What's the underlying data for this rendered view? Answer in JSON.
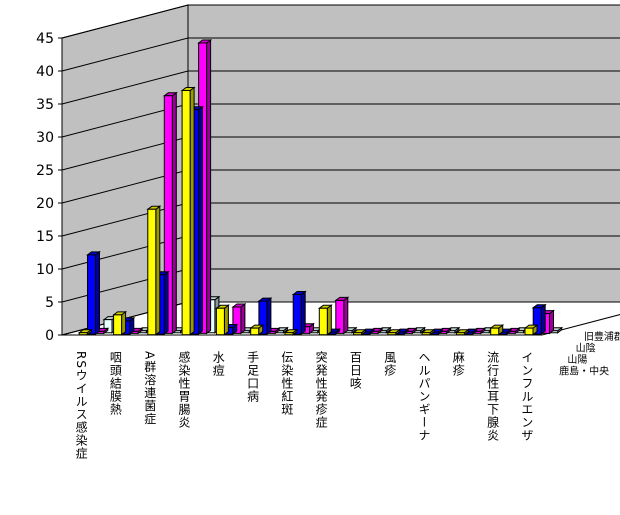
{
  "chart_data": {
    "type": "bar",
    "style": "3d-clustered-column",
    "ylim": [
      0,
      45
    ],
    "yticks": [
      0,
      5,
      10,
      15,
      20,
      25,
      30,
      35,
      40,
      45
    ],
    "grid": true,
    "legend_placement": "right, along depth axis",
    "categories": [
      "RSウイルス感染症",
      "咽頭結膜熱",
      "A群溶連菌症",
      "感染性胃腸炎",
      "水痘",
      "手足口病",
      "伝染性紅斑",
      "突発性発疹症",
      "百日咳",
      "風疹",
      "ヘルパンギーナ",
      "麻疹",
      "流行性耳下腺炎",
      "インフルエンザ"
    ],
    "series": [
      {
        "name": "鹿島・中央",
        "color": "#FFFF00",
        "values": [
          0,
          3,
          19,
          37,
          4,
          1,
          0,
          4,
          0,
          0,
          0,
          0,
          1,
          1
        ]
      },
      {
        "name": "山陽",
        "color": "#0000FF",
        "values": [
          12,
          2,
          9,
          34,
          1,
          5,
          6,
          0,
          0,
          0,
          0,
          0,
          0,
          4
        ]
      },
      {
        "name": "山陰",
        "color": "#FF00FF",
        "values": [
          0,
          0,
          36,
          44,
          4,
          0,
          1,
          5,
          0,
          0,
          0,
          0,
          0,
          3
        ]
      },
      {
        "name": "旧豊浦郡",
        "color": "#E6FFFF",
        "values": [
          2,
          0,
          0,
          5,
          0,
          0,
          0,
          0,
          0,
          0,
          0,
          0,
          0,
          0
        ]
      }
    ]
  }
}
